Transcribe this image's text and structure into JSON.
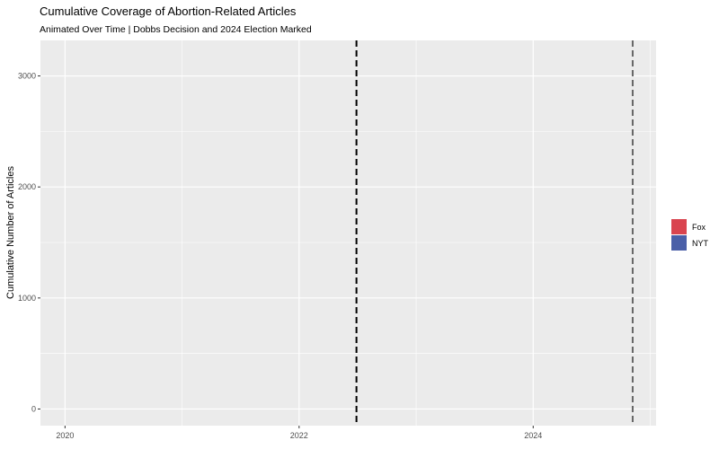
{
  "chart_data": {
    "type": "line",
    "title": "Cumulative Coverage of Abortion-Related Articles",
    "subtitle": "Animated Over Time | Dobbs Decision and 2024 Election Marked",
    "xlabel": "",
    "ylabel": "Cumulative Number of Articles",
    "x_ticks": [
      2020,
      2022,
      2024
    ],
    "y_ticks": [
      0,
      1000,
      2000,
      3000
    ],
    "xlim": [
      2019.79,
      2025.05
    ],
    "ylim": [
      -150,
      3320
    ],
    "grid": true,
    "legend_position": "right",
    "series": [
      {
        "name": "Fox",
        "color": "#d9444f",
        "x": [],
        "y": []
      },
      {
        "name": "NYT",
        "color": "#4a5fa8",
        "x": [],
        "y": []
      }
    ],
    "reference_lines": [
      {
        "x": 2022.49,
        "color": "#000000",
        "style": "dashed"
      },
      {
        "x": 2024.85,
        "color": "#666666",
        "style": "dashed"
      }
    ]
  }
}
